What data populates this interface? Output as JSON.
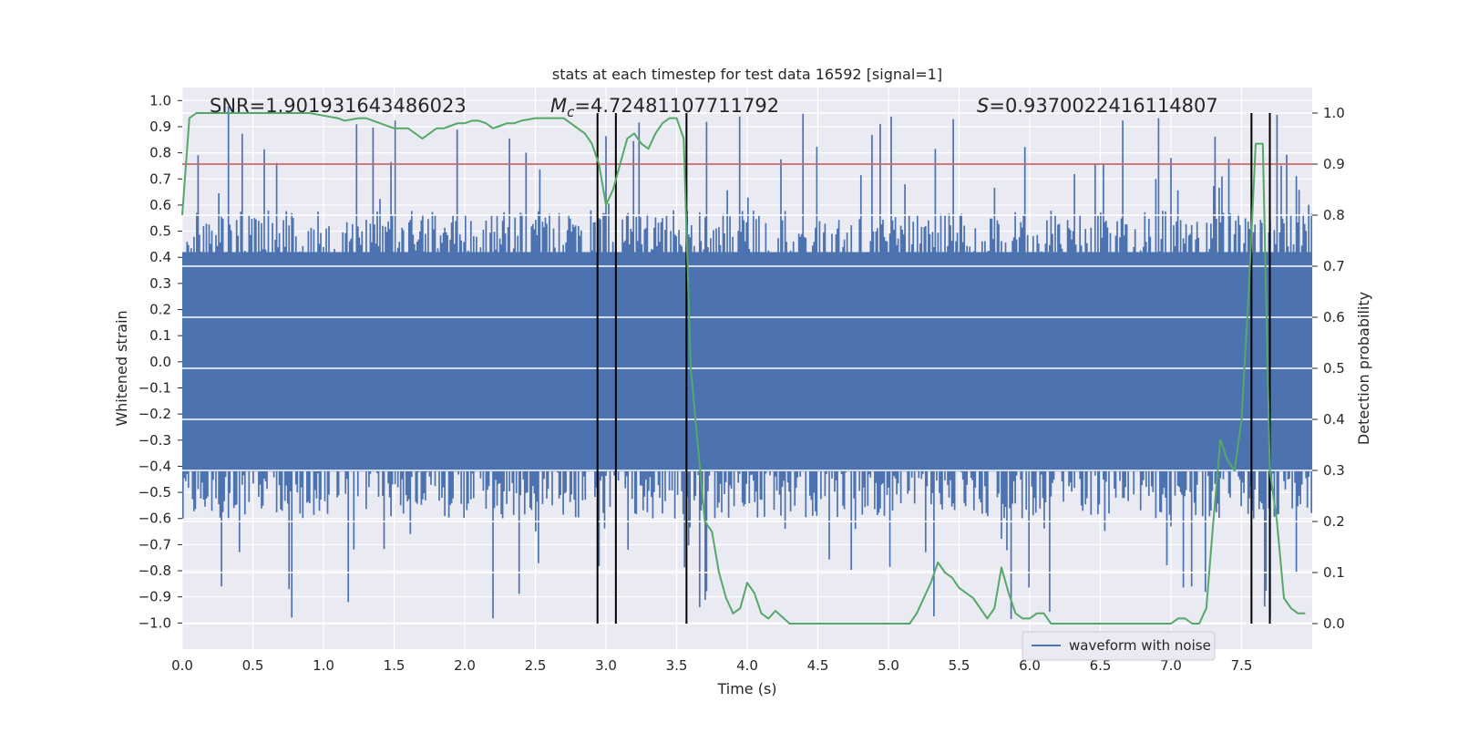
{
  "chart_data": {
    "type": "line",
    "title": "stats at each timestep for test data 16592 [signal=1]",
    "xlabel": "Time (s)",
    "ylabel_left": "Whitened strain",
    "ylabel_right": "Detection probability",
    "xlim": [
      0.0,
      8.0
    ],
    "ylim_left": [
      -1.1,
      1.05
    ],
    "ylim_right": [
      -0.05,
      1.05
    ],
    "x_ticks": [
      "0.0",
      "0.5",
      "1.0",
      "1.5",
      "2.0",
      "2.5",
      "3.0",
      "3.5",
      "4.0",
      "4.5",
      "5.0",
      "5.5",
      "6.0",
      "6.5",
      "7.0",
      "7.5"
    ],
    "y_ticks_left": [
      "1.0",
      "0.9",
      "0.8",
      "0.7",
      "0.6",
      "0.5",
      "0.4",
      "0.3",
      "0.2",
      "0.1",
      "0.0",
      "-0.1",
      "-0.2",
      "-0.3",
      "-0.4",
      "-0.5",
      "-0.6",
      "-0.7",
      "-0.8",
      "-0.9",
      "-1.0"
    ],
    "y_ticks_right": [
      "1.0",
      "0.9",
      "0.8",
      "0.7",
      "0.6",
      "0.5",
      "0.4",
      "0.3",
      "0.2",
      "0.1",
      "0.0"
    ],
    "grid": true,
    "annotations": {
      "snr": "SNR=1.901931643486023",
      "mc_symbol": "M",
      "mc_sub": "c",
      "mc_value": "=4.72481107711792",
      "s_symbol": "S",
      "s_value": "=0.9370022416114807"
    },
    "threshold": {
      "value": 0.9,
      "axis": "right",
      "color": "#c44e52"
    },
    "vertical_lines": [
      2.94,
      3.07,
      3.57,
      7.57,
      7.7
    ],
    "vertical_line_color": "#000000",
    "waveform": {
      "name": "waveform with noise",
      "color": "#4c72b0",
      "core_amplitude": 0.42,
      "peak_max": 0.98,
      "trough_min": -0.99,
      "sample_count": 820
    },
    "probability": {
      "name": "detection probability",
      "color": "#55a868",
      "x": [
        0.0,
        0.05,
        0.1,
        0.15,
        0.3,
        0.5,
        0.7,
        0.8,
        0.9,
        1.0,
        1.1,
        1.15,
        1.25,
        1.3,
        1.4,
        1.5,
        1.6,
        1.7,
        1.75,
        1.8,
        1.85,
        1.9,
        1.95,
        2.0,
        2.05,
        2.1,
        2.15,
        2.2,
        2.25,
        2.3,
        2.35,
        2.4,
        2.5,
        2.55,
        2.6,
        2.7,
        2.75,
        2.8,
        2.85,
        2.9,
        2.95,
        3.0,
        3.05,
        3.1,
        3.15,
        3.2,
        3.25,
        3.3,
        3.35,
        3.4,
        3.45,
        3.5,
        3.55,
        3.6,
        3.65,
        3.7,
        3.75,
        3.8,
        3.85,
        3.9,
        3.95,
        4.0,
        4.05,
        4.1,
        4.15,
        4.2,
        4.3,
        4.4,
        4.6,
        4.8,
        5.0,
        5.1,
        5.15,
        5.2,
        5.3,
        5.35,
        5.4,
        5.45,
        5.5,
        5.55,
        5.6,
        5.7,
        5.75,
        5.8,
        5.85,
        5.9,
        5.95,
        6.0,
        6.05,
        6.1,
        6.15,
        6.2,
        6.3,
        6.5,
        6.7,
        6.9,
        7.0,
        7.05,
        7.1,
        7.15,
        7.2,
        7.25,
        7.3,
        7.35,
        7.4,
        7.45,
        7.5,
        7.55,
        7.6,
        7.65,
        7.7,
        7.75,
        7.8,
        7.85,
        7.9,
        7.95
      ],
      "y": [
        0.8,
        0.99,
        1.0,
        1.0,
        1.0,
        1.0,
        1.0,
        1.0,
        1.0,
        0.995,
        0.99,
        0.985,
        0.99,
        0.99,
        0.98,
        0.97,
        0.97,
        0.95,
        0.96,
        0.97,
        0.97,
        0.975,
        0.98,
        0.98,
        0.985,
        0.985,
        0.98,
        0.97,
        0.975,
        0.98,
        0.98,
        0.985,
        0.99,
        0.99,
        0.99,
        0.99,
        0.98,
        0.97,
        0.96,
        0.94,
        0.9,
        0.82,
        0.85,
        0.9,
        0.95,
        0.96,
        0.94,
        0.93,
        0.96,
        0.98,
        0.99,
        0.99,
        0.95,
        0.5,
        0.35,
        0.2,
        0.18,
        0.1,
        0.05,
        0.02,
        0.03,
        0.08,
        0.06,
        0.02,
        0.01,
        0.025,
        0.0,
        0.0,
        0.0,
        0.0,
        0.0,
        0.0,
        0.0,
        0.02,
        0.08,
        0.12,
        0.1,
        0.09,
        0.07,
        0.06,
        0.05,
        0.01,
        0.03,
        0.11,
        0.06,
        0.02,
        0.01,
        0.01,
        0.02,
        0.02,
        0.0,
        0.0,
        0.0,
        0.0,
        0.0,
        0.0,
        0.0,
        0.01,
        0.01,
        0.0,
        0.0,
        0.03,
        0.2,
        0.36,
        0.32,
        0.3,
        0.4,
        0.65,
        0.94,
        0.94,
        0.3,
        0.2,
        0.05,
        0.03,
        0.02,
        0.02
      ]
    },
    "legend": {
      "label": "waveform with noise",
      "placement": "lower-right"
    }
  }
}
